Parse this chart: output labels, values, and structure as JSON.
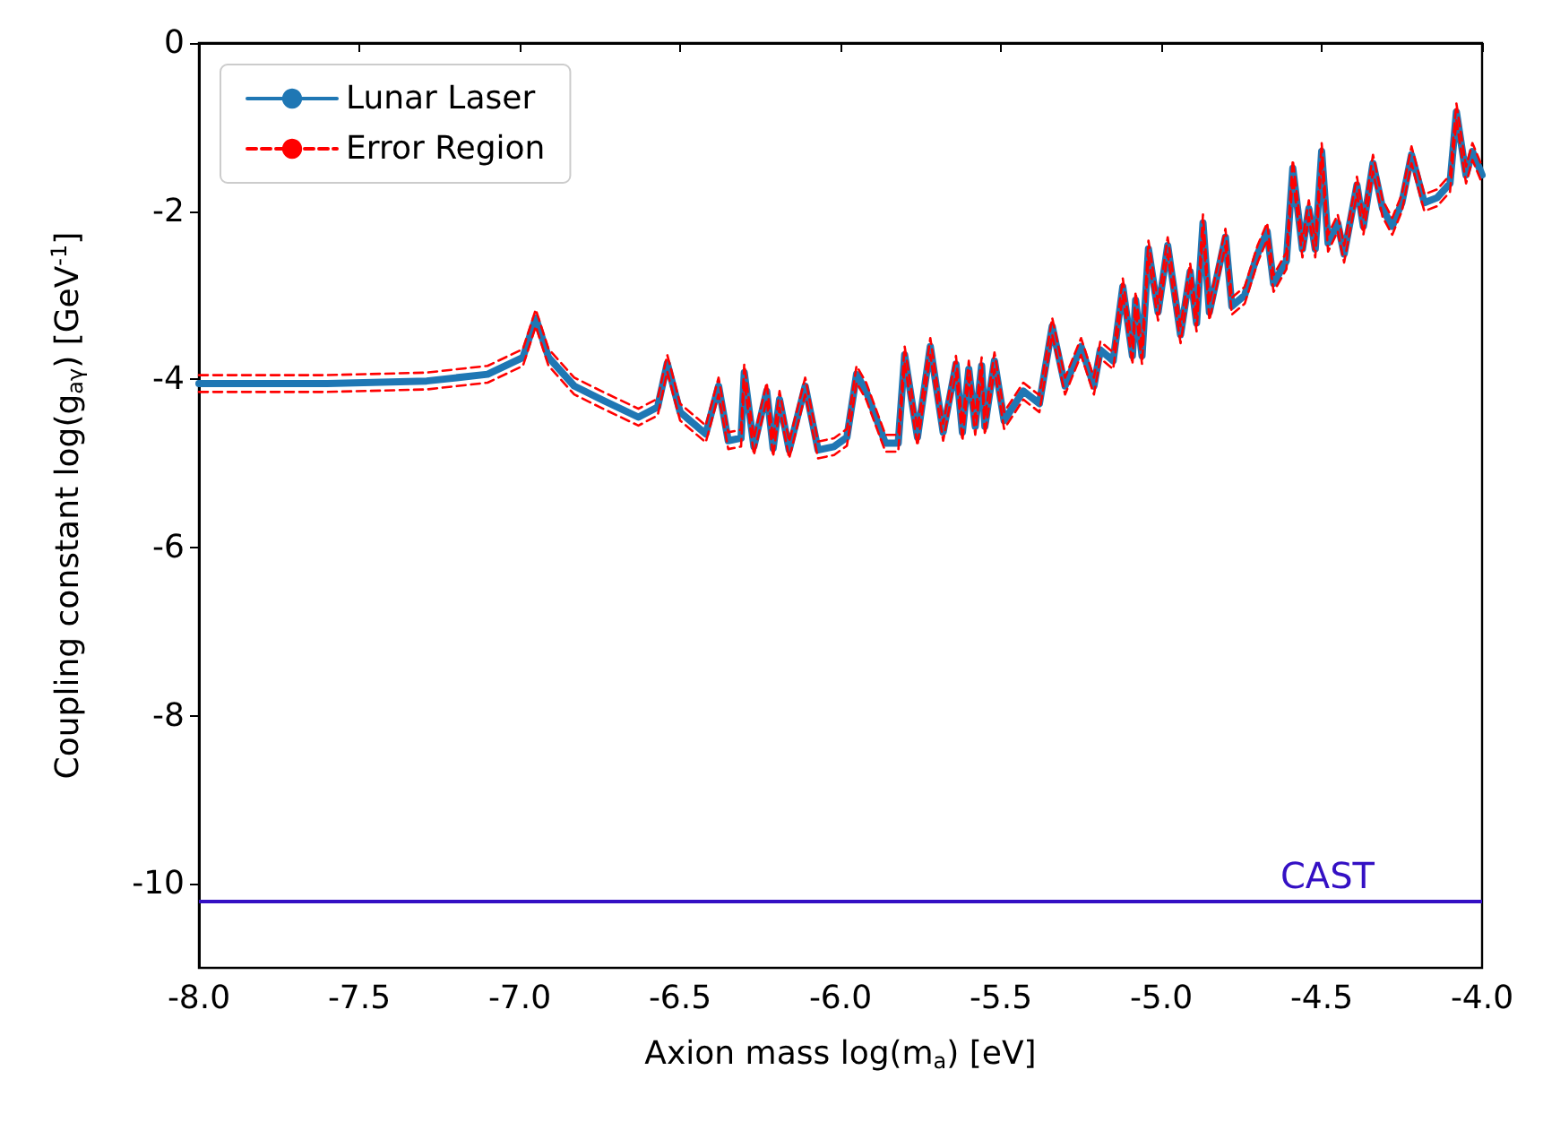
{
  "chart_data": {
    "type": "line",
    "xlabel": "Axion mass log(m$_{a}$) [eV]",
    "ylabel": "Coupling constant log(g$_{aγ}$) [GeV$^{-1}$]",
    "xlim": [
      -8,
      -4
    ],
    "xticks": [
      {
        "value": -8,
        "label": "-8.0"
      },
      {
        "value": -7.5,
        "label": "-7.5"
      },
      {
        "value": -7,
        "label": "-7.0"
      },
      {
        "value": -6.5,
        "label": "-6.5"
      },
      {
        "value": -6,
        "label": "-6.0"
      },
      {
        "value": -5.5,
        "label": "-5.5"
      },
      {
        "value": -5,
        "label": "-5.0"
      },
      {
        "value": -4.5,
        "label": "-4.5"
      },
      {
        "value": -4,
        "label": "-4.0"
      }
    ],
    "ylim": [
      -11,
      0
    ],
    "yticks": [
      -10,
      -8,
      -6,
      -4,
      -2,
      0
    ],
    "grid": false,
    "legend": "top left",
    "marker": "none",
    "x": [
      -8.0,
      -7.6,
      -7.29,
      -7.1,
      -6.99,
      -6.95,
      -6.91,
      -6.83,
      -6.74,
      -6.63,
      -6.57,
      -6.54,
      -6.5,
      -6.42,
      -6.38,
      -6.35,
      -6.31,
      -6.3,
      -6.27,
      -6.23,
      -6.21,
      -6.19,
      -6.16,
      -6.11,
      -6.07,
      -6.02,
      -5.98,
      -5.95,
      -5.92,
      -5.86,
      -5.82,
      -5.8,
      -5.76,
      -5.72,
      -5.68,
      -5.64,
      -5.62,
      -5.6,
      -5.58,
      -5.56,
      -5.55,
      -5.52,
      -5.49,
      -5.43,
      -5.38,
      -5.34,
      -5.3,
      -5.25,
      -5.21,
      -5.19,
      -5.15,
      -5.12,
      -5.09,
      -5.08,
      -5.06,
      -5.04,
      -5.01,
      -4.98,
      -4.94,
      -4.91,
      -4.89,
      -4.87,
      -4.85,
      -4.8,
      -4.78,
      -4.74,
      -4.7,
      -4.67,
      -4.65,
      -4.61,
      -4.59,
      -4.56,
      -4.54,
      -4.52,
      -4.5,
      -4.48,
      -4.45,
      -4.43,
      -4.39,
      -4.37,
      -4.34,
      -4.31,
      -4.28,
      -4.25,
      -4.22,
      -4.18,
      -4.14,
      -4.1,
      -4.08,
      -4.05,
      -4.03,
      -4.0
    ],
    "series": [
      {
        "name": "Lunar Laser",
        "color": "#1f77b4",
        "line_style": "solid",
        "values": [
          -4.05,
          -4.05,
          -4.02,
          -3.94,
          -3.74,
          -3.27,
          -3.74,
          -4.08,
          -4.25,
          -4.45,
          -4.33,
          -3.81,
          -4.39,
          -4.65,
          -4.08,
          -4.73,
          -4.7,
          -3.92,
          -4.8,
          -4.14,
          -4.82,
          -4.24,
          -4.84,
          -4.08,
          -4.84,
          -4.8,
          -4.69,
          -3.94,
          -4.14,
          -4.76,
          -4.76,
          -3.71,
          -4.69,
          -3.61,
          -4.63,
          -3.82,
          -4.63,
          -3.88,
          -4.56,
          -3.84,
          -4.56,
          -3.78,
          -4.49,
          -4.14,
          -4.29,
          -3.37,
          -4.08,
          -3.61,
          -4.08,
          -3.65,
          -3.78,
          -2.9,
          -3.72,
          -3.06,
          -3.72,
          -2.45,
          -3.2,
          -2.41,
          -3.47,
          -2.72,
          -3.33,
          -2.14,
          -3.2,
          -2.31,
          -3.13,
          -3.0,
          -2.51,
          -2.24,
          -2.86,
          -2.59,
          -1.49,
          -2.45,
          -1.97,
          -2.45,
          -1.29,
          -2.38,
          -2.14,
          -2.51,
          -1.69,
          -2.18,
          -1.43,
          -1.97,
          -2.18,
          -1.9,
          -1.33,
          -1.9,
          -1.84,
          -1.67,
          -0.82,
          -1.57,
          -1.29,
          -1.57
        ]
      },
      {
        "name": "Error Region",
        "color": "#ff0000",
        "line_style": "dashed",
        "values": [
          -3.95,
          -3.95,
          -3.92,
          -3.84,
          -3.64,
          -3.17,
          -3.64,
          -3.98,
          -4.15,
          -4.35,
          -4.23,
          -3.71,
          -4.29,
          -4.55,
          -3.98,
          -4.63,
          -4.6,
          -3.82,
          -4.7,
          -4.04,
          -4.72,
          -4.14,
          -4.74,
          -3.98,
          -4.74,
          -4.7,
          -4.59,
          -3.84,
          -4.04,
          -4.66,
          -4.66,
          -3.61,
          -4.59,
          -3.51,
          -4.53,
          -3.72,
          -4.53,
          -3.78,
          -4.46,
          -3.74,
          -4.46,
          -3.68,
          -4.39,
          -4.04,
          -4.19,
          -3.27,
          -3.98,
          -3.51,
          -3.98,
          -3.55,
          -3.68,
          -2.8,
          -3.62,
          -2.96,
          -3.62,
          -2.35,
          -3.1,
          -2.31,
          -3.37,
          -2.62,
          -3.23,
          -2.04,
          -3.1,
          -2.21,
          -3.03,
          -2.9,
          -2.41,
          -2.14,
          -2.76,
          -2.49,
          -1.39,
          -2.35,
          -1.87,
          -2.35,
          -1.19,
          -2.28,
          -2.04,
          -2.41,
          -1.59,
          -2.08,
          -1.33,
          -1.87,
          -2.08,
          -1.8,
          -1.23,
          -1.8,
          -1.74,
          -1.57,
          -0.72,
          -1.47,
          -1.19,
          -1.47
        ]
      },
      {
        "color": "#ff0000",
        "line_style": "dashed",
        "values": [
          -4.15,
          -4.15,
          -4.12,
          -4.04,
          -3.84,
          -3.37,
          -3.84,
          -4.18,
          -4.35,
          -4.55,
          -4.43,
          -3.91,
          -4.49,
          -4.75,
          -4.18,
          -4.83,
          -4.8,
          -4.02,
          -4.9,
          -4.24,
          -4.92,
          -4.34,
          -4.94,
          -4.18,
          -4.94,
          -4.9,
          -4.79,
          -4.04,
          -4.24,
          -4.86,
          -4.86,
          -3.81,
          -4.79,
          -3.71,
          -4.73,
          -3.92,
          -4.73,
          -3.98,
          -4.66,
          -3.94,
          -4.66,
          -3.88,
          -4.59,
          -4.24,
          -4.39,
          -3.47,
          -4.18,
          -3.71,
          -4.18,
          -3.75,
          -3.88,
          -3.0,
          -3.82,
          -3.16,
          -3.82,
          -2.55,
          -3.3,
          -2.51,
          -3.57,
          -2.82,
          -3.43,
          -2.24,
          -3.3,
          -2.41,
          -3.23,
          -3.1,
          -2.61,
          -2.34,
          -2.96,
          -2.69,
          -1.59,
          -2.55,
          -2.07,
          -2.55,
          -1.39,
          -2.48,
          -2.24,
          -2.61,
          -1.79,
          -2.28,
          -1.53,
          -2.07,
          -2.28,
          -2.0,
          -1.43,
          -2.0,
          -1.94,
          -1.77,
          -0.92,
          -1.67,
          -1.39,
          -1.67
        ]
      }
    ],
    "ref_lines": [
      {
        "axis": "y",
        "value": -10.2,
        "label": "CAST",
        "color": "#3410c4",
        "line_style": "solid"
      }
    ]
  }
}
